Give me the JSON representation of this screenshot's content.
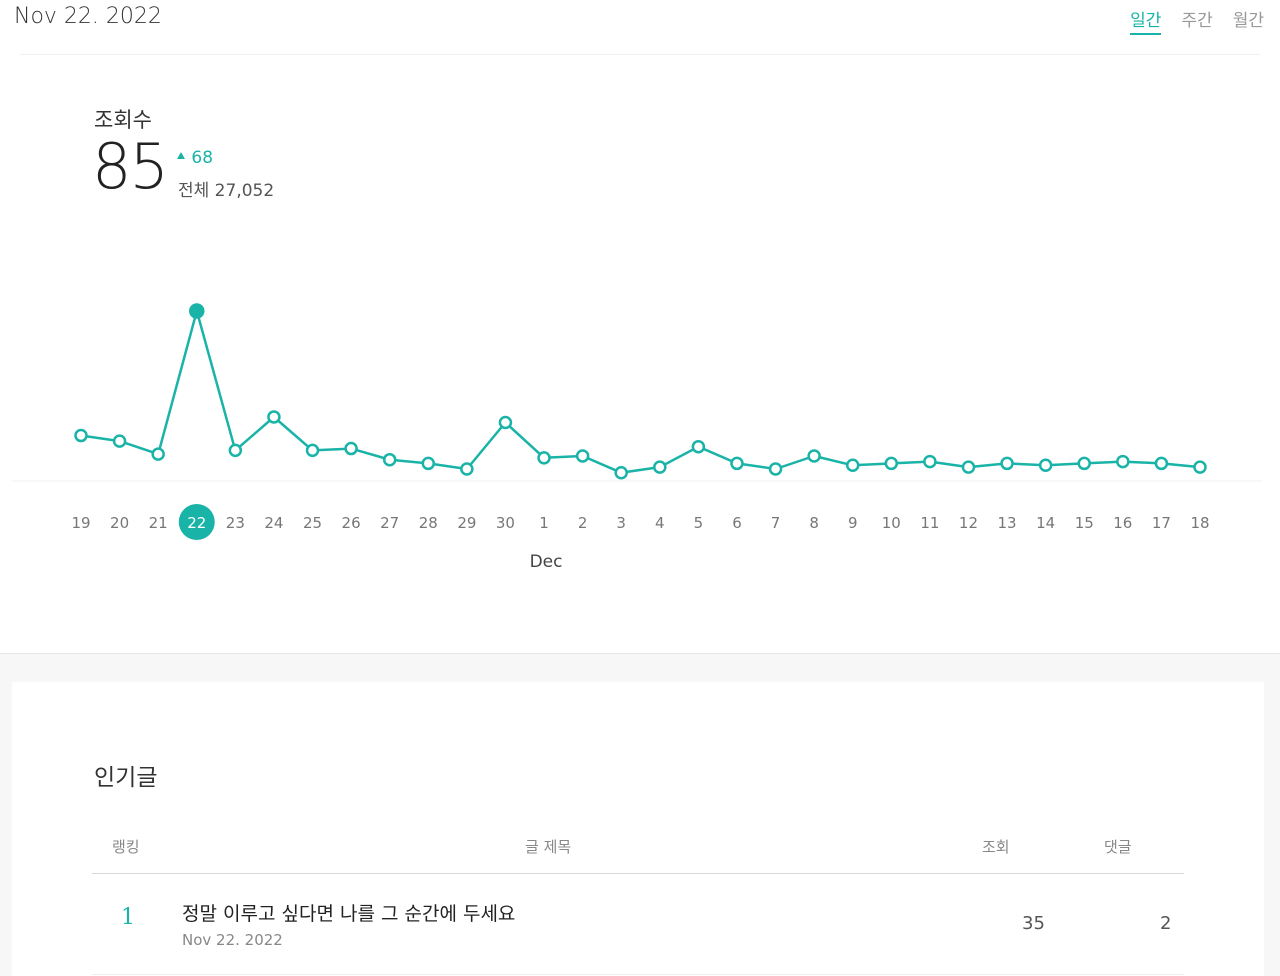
{
  "header": {
    "date": "Nov 22. 2022",
    "tabs": [
      {
        "label": "일간",
        "active": true
      },
      {
        "label": "주간",
        "active": false
      },
      {
        "label": "월간",
        "active": false
      }
    ]
  },
  "stat": {
    "label": "조회수",
    "value": "85",
    "change": "68",
    "change_icon": "triangle-up-icon",
    "total": "전체 27,052"
  },
  "colors": {
    "accent": "#19b3a8"
  },
  "chart_data": {
    "type": "line",
    "x": [
      "19",
      "20",
      "21",
      "22",
      "23",
      "24",
      "25",
      "26",
      "27",
      "28",
      "29",
      "30",
      "1",
      "2",
      "3",
      "4",
      "5",
      "6",
      "7",
      "8",
      "9",
      "10",
      "11",
      "12",
      "13",
      "14",
      "15",
      "16",
      "17",
      "18"
    ],
    "values": [
      18,
      15,
      8,
      85,
      10,
      28,
      10,
      11,
      5,
      3,
      0,
      25,
      6,
      7,
      -2,
      1,
      12,
      3,
      0,
      7,
      2,
      3,
      4,
      1,
      3,
      2,
      3,
      4,
      3,
      1
    ],
    "highlight_index": 3,
    "month_label": "Dec",
    "month_label_index": 12,
    "grid": false
  },
  "popular": {
    "title": "인기글",
    "headers": {
      "rank": "랭킹",
      "title": "글 제목",
      "views": "조회",
      "comments": "댓글"
    },
    "rows": [
      {
        "rank": "1",
        "title": "정말 이루고 싶다면 나를 그 순간에 두세요",
        "date": "Nov 22. 2022",
        "views": "35",
        "comments": "2"
      }
    ]
  }
}
